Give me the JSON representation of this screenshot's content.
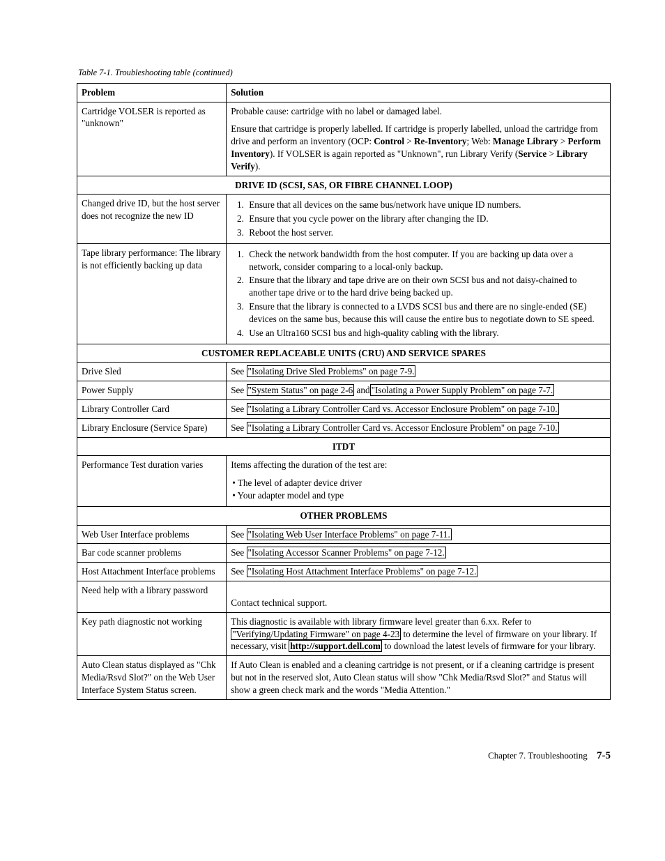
{
  "caption": "Table 7-1. Troubleshooting table  (continued)",
  "headers": {
    "problem": "Problem",
    "solution": "Solution"
  },
  "sections": {
    "drive_id": "DRIVE ID (SCSI, SAS, OR FIBRE CHANNEL LOOP)",
    "cru": "CUSTOMER REPLACEABLE UNITS (CRU) AND SERVICE SPARES",
    "itdt": "ITDT",
    "other": "OTHER PROBLEMS"
  },
  "rows": {
    "volser": {
      "problem": "Cartridge VOLSER is reported as \"unknown\"",
      "p1": "Probable cause: cartridge with no label or damaged label.",
      "p2a": "Ensure that cartridge is properly labelled. If cartridge is properly labelled, unload the cartridge from drive and perform an inventory (OCP: ",
      "p2b": "Control",
      "p2c": " > ",
      "p2d": "Re-Inventory",
      "p2e": "; Web: ",
      "p2f": "Manage Library",
      "p2g": " > ",
      "p2h": "Perform Inventory",
      "p2i": "). If VOLSER is again reported as \"Unknown\", run Library Verify (",
      "p2j": "Service",
      "p2k": " > ",
      "p2l": "Library Verify",
      "p2m": ")."
    },
    "changed_id": {
      "problem": "Changed drive ID, but the host server does not recognize the new ID",
      "li1": "Ensure that all devices on the same bus/network have unique ID numbers.",
      "li2": "Ensure that you cycle power on the library after changing the ID.",
      "li3": "Reboot the host server."
    },
    "perf": {
      "problem": "Tape library performance: The library is not efficiently backing up data",
      "li1": "Check the network bandwidth from the host computer. If you are backing up data over a network, consider comparing to a local-only backup.",
      "li2": "Ensure that the library and tape drive are on their own SCSI bus and not daisy-chained to another tape drive or to the hard drive being backed up.",
      "li3": "Ensure that the library is connected to a LVDS SCSI bus and there are no single-ended (SE) devices on the same bus, because this will cause the entire bus to negotiate down to SE speed.",
      "li4": "Use an Ultra160 SCSI bus and high-quality cabling with the library."
    },
    "drive_sled": {
      "problem": "Drive Sled",
      "pre": "See ",
      "link": "\"Isolating Drive Sled Problems\" on page 7-9."
    },
    "power": {
      "problem": "Power Supply",
      "pre": "See ",
      "link1": "\"System Status\" on page 2-6",
      "mid": " and",
      "link2": "\"Isolating a Power Supply Problem\" on page 7-7."
    },
    "lcc": {
      "problem": "Library Controller Card",
      "pre": "See ",
      "link": "\"Isolating a Library Controller Card vs. Accessor Enclosure Problem\" on page 7-10."
    },
    "encl": {
      "problem": "Library Enclosure (Service Spare)",
      "pre": "See ",
      "link": "\"Isolating a Library Controller Card vs. Accessor Enclosure Problem\" on page 7-10."
    },
    "itdt_row": {
      "problem": "Performance Test duration varies",
      "intro": "Items affecting the duration of the test are:",
      "b1": "The level of adapter device driver",
      "b2": "Your adapter model and type"
    },
    "webui": {
      "problem": "Web User Interface problems",
      "pre": "See ",
      "link": "\"Isolating Web User Interface Problems\" on page 7-11."
    },
    "barcode": {
      "problem": "Bar code scanner problems",
      "pre": "See ",
      "link": "\"Isolating Accessor Scanner Problems\" on page 7-12."
    },
    "host": {
      "problem": "Host Attachment Interface problems",
      "pre": "See ",
      "link": "\"Isolating Host Attachment Interface Problems\" on page 7-12."
    },
    "pwd": {
      "problem": "Need help with a library password",
      "sol": "Contact technical support."
    },
    "keypath": {
      "problem": "Key path diagnostic not working",
      "t1": "This diagnostic is available with library firmware level greater than 6.xx. Refer to ",
      "link1": "\"Verifying/Updating Firmware\" on page 4-23",
      "t2": " to determine the level of firmware on your library. If necessary, visit ",
      "link2": "http://support.dell.com",
      "t3": " to download the latest levels of firmware for your library."
    },
    "autoclean": {
      "problem": "Auto Clean status displayed as \"Chk Media/Rsvd Slot?\" on the Web User Interface System Status screen.",
      "sol": "If Auto Clean is enabled and a cleaning cartridge is not present, or if a cleaning cartridge is present but not in the reserved slot, Auto Clean status will show \"Chk Media/Rsvd Slot?\" and Status will show a green check mark and the words \"Media Attention.\""
    }
  },
  "footer": {
    "chapter": "Chapter 7. Troubleshooting",
    "page": "7-5"
  }
}
